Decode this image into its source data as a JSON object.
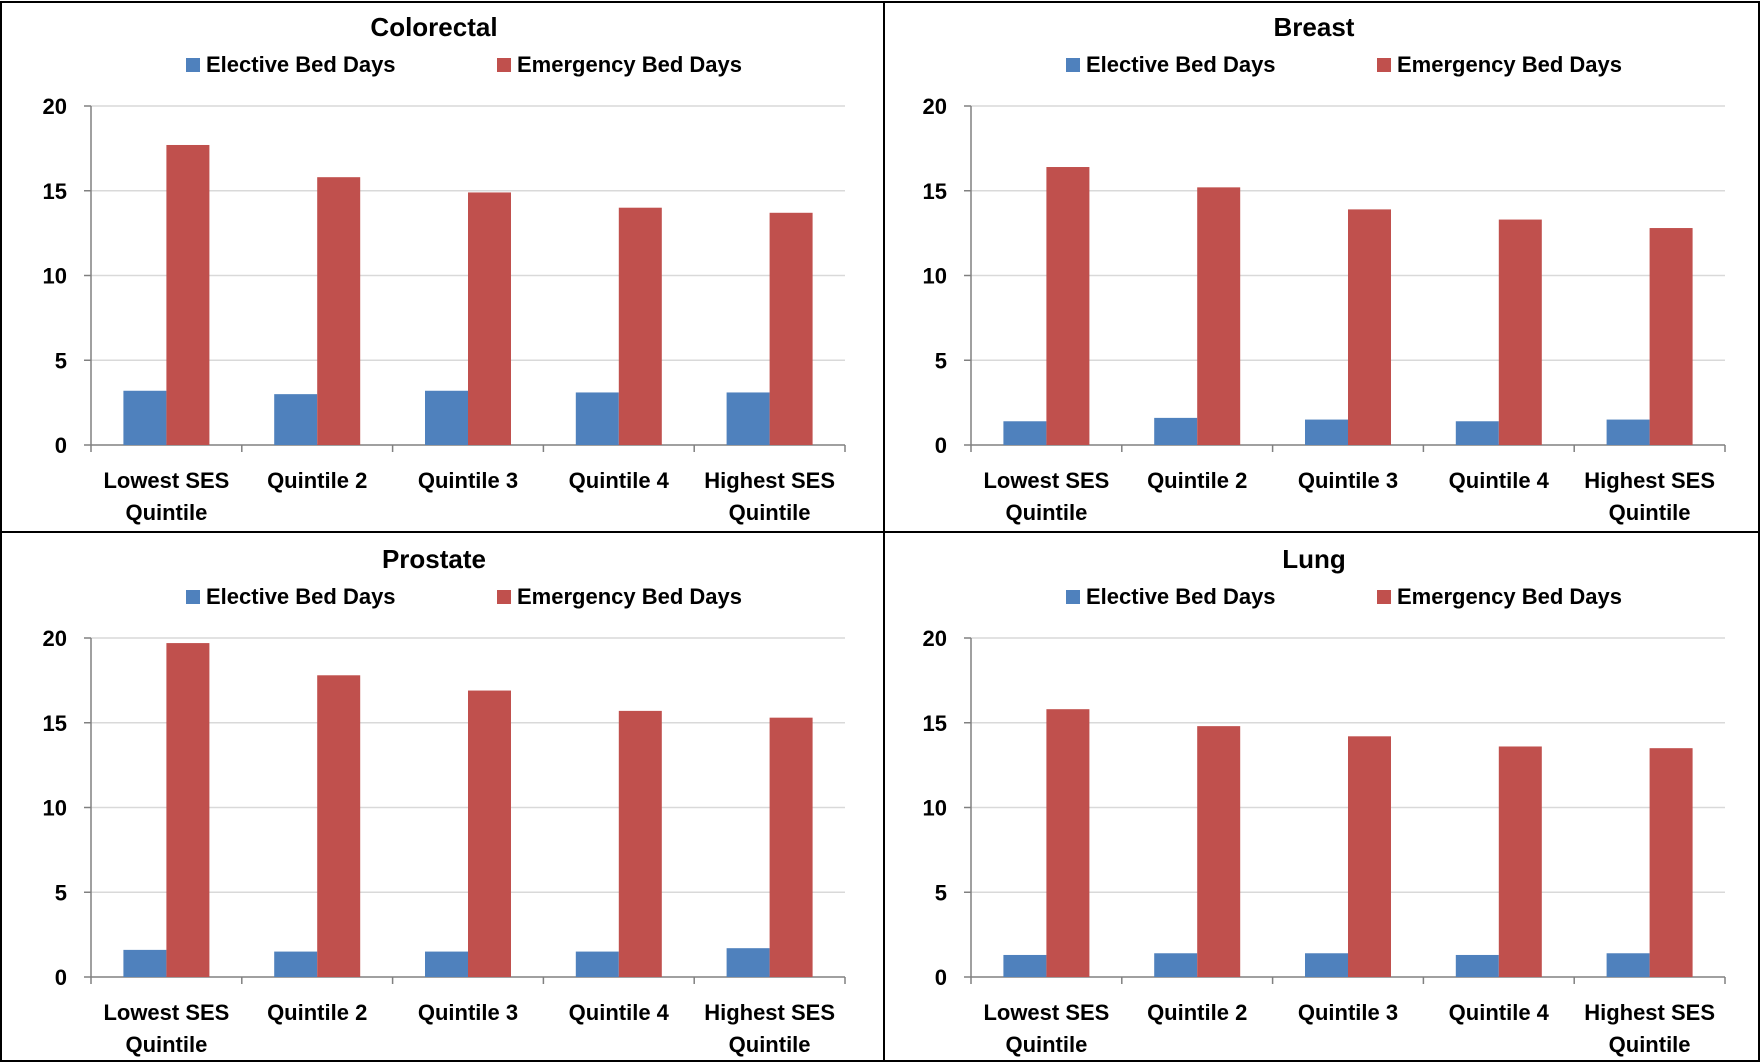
{
  "colors": {
    "elective": "#4F81BD",
    "emergency": "#C0504D",
    "gridline": "#d9d9d9",
    "axis": "#808080",
    "border": "#000000"
  },
  "chart_data": [
    {
      "type": "bar",
      "title": "Colorectal",
      "categories": [
        [
          "Lowest SES",
          "Quintile"
        ],
        [
          "Quintile 2"
        ],
        [
          "Quintile 3"
        ],
        [
          "Quintile 4"
        ],
        [
          "Highest SES",
          "Quintile"
        ]
      ],
      "series": [
        {
          "name": "Elective Bed Days",
          "color": "#4F81BD",
          "values": [
            3.2,
            3.0,
            3.2,
            3.1,
            3.1
          ]
        },
        {
          "name": "Emergency Bed Days",
          "color": "#C0504D",
          "values": [
            17.7,
            15.8,
            14.9,
            14.0,
            13.7
          ]
        }
      ],
      "ylim": [
        0,
        20
      ],
      "yticks": [
        0,
        5,
        10,
        15,
        20
      ],
      "grid": true,
      "legend": "top"
    },
    {
      "type": "bar",
      "title": "Breast",
      "categories": [
        [
          "Lowest SES",
          "Quintile"
        ],
        [
          "Quintile 2"
        ],
        [
          "Quintile 3"
        ],
        [
          "Quintile 4"
        ],
        [
          "Highest SES",
          "Quintile"
        ]
      ],
      "series": [
        {
          "name": "Elective Bed Days",
          "color": "#4F81BD",
          "values": [
            1.4,
            1.6,
            1.5,
            1.4,
            1.5
          ]
        },
        {
          "name": "Emergency Bed Days",
          "color": "#C0504D",
          "values": [
            16.4,
            15.2,
            13.9,
            13.3,
            12.8
          ]
        }
      ],
      "ylim": [
        0,
        20
      ],
      "yticks": [
        0,
        5,
        10,
        15,
        20
      ],
      "grid": true,
      "legend": "top"
    },
    {
      "type": "bar",
      "title": "Prostate",
      "categories": [
        [
          "Lowest SES",
          "Quintile"
        ],
        [
          "Quintile 2"
        ],
        [
          "Quintile 3"
        ],
        [
          "Quintile 4"
        ],
        [
          "Highest SES",
          "Quintile"
        ]
      ],
      "series": [
        {
          "name": "Elective Bed Days",
          "color": "#4F81BD",
          "values": [
            1.6,
            1.5,
            1.5,
            1.5,
            1.7
          ]
        },
        {
          "name": "Emergency Bed Days",
          "color": "#C0504D",
          "values": [
            19.7,
            17.8,
            16.9,
            15.7,
            15.3
          ]
        }
      ],
      "ylim": [
        0,
        20
      ],
      "yticks": [
        0,
        5,
        10,
        15,
        20
      ],
      "grid": true,
      "legend": "top"
    },
    {
      "type": "bar",
      "title": "Lung",
      "categories": [
        [
          "Lowest SES",
          "Quintile"
        ],
        [
          "Quintile 2"
        ],
        [
          "Quintile 3"
        ],
        [
          "Quintile 4"
        ],
        [
          "Highest SES",
          "Quintile"
        ]
      ],
      "series": [
        {
          "name": "Elective Bed Days",
          "color": "#4F81BD",
          "values": [
            1.3,
            1.4,
            1.4,
            1.3,
            1.4
          ]
        },
        {
          "name": "Emergency Bed Days",
          "color": "#C0504D",
          "values": [
            15.8,
            14.8,
            14.2,
            13.6,
            13.5
          ]
        }
      ],
      "ylim": [
        0,
        20
      ],
      "yticks": [
        0,
        5,
        10,
        15,
        20
      ],
      "grid": true,
      "legend": "top"
    }
  ]
}
